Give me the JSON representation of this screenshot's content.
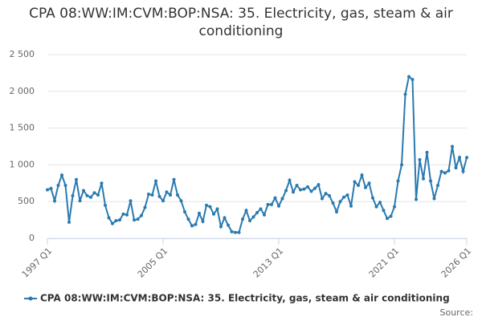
{
  "chart_data": {
    "type": "line",
    "title": "CPA 08:WW:IM:CVM:BOP:NSA: 35. Electricity, gas, steam & air conditioning",
    "categories": [
      "1997 Q1",
      null,
      null,
      null,
      null,
      null,
      null,
      null,
      null,
      null,
      null,
      null,
      null,
      null,
      null,
      null,
      null,
      null,
      null,
      null,
      null,
      null,
      null,
      null,
      null,
      null,
      null,
      null,
      null,
      null,
      null,
      null,
      "2005 Q1",
      null,
      null,
      null,
      null,
      null,
      null,
      null,
      null,
      null,
      null,
      null,
      null,
      null,
      null,
      null,
      null,
      null,
      null,
      null,
      null,
      null,
      null,
      null,
      null,
      null,
      null,
      null,
      null,
      null,
      null,
      null,
      "2013 Q1",
      null,
      null,
      null,
      null,
      null,
      null,
      null,
      null,
      null,
      null,
      null,
      null,
      null,
      null,
      null,
      null,
      null,
      null,
      null,
      null,
      null,
      null,
      null,
      null,
      null,
      null,
      null,
      null,
      null,
      null,
      null,
      "2021 Q1",
      null,
      null,
      null,
      null,
      null,
      null,
      null,
      null,
      null,
      null,
      null,
      null,
      null,
      null,
      null,
      null,
      null,
      null,
      null,
      "2026 Q1"
    ],
    "series": [
      {
        "name": "CPA 08:WW:IM:CVM:BOP:NSA: 35. Electricity, gas, steam & air conditioning",
        "color": "#2a7ab0",
        "values": [
          660,
          680,
          510,
          720,
          860,
          720,
          220,
          580,
          800,
          510,
          650,
          580,
          560,
          620,
          590,
          750,
          450,
          280,
          200,
          240,
          250,
          330,
          320,
          510,
          250,
          260,
          310,
          420,
          600,
          590,
          780,
          570,
          510,
          630,
          590,
          800,
          590,
          510,
          360,
          260,
          170,
          190,
          340,
          230,
          450,
          430,
          330,
          400,
          160,
          280,
          180,
          90,
          80,
          80,
          260,
          380,
          240,
          290,
          350,
          400,
          320,
          460,
          460,
          550,
          440,
          540,
          650,
          790,
          630,
          720,
          660,
          670,
          700,
          640,
          680,
          730,
          540,
          610,
          580,
          480,
          360,
          500,
          560,
          590,
          440,
          770,
          720,
          860,
          690,
          750,
          550,
          430,
          490,
          380,
          270,
          300,
          430,
          780,
          1000,
          1960,
          2200,
          2160,
          530,
          1070,
          810,
          1170,
          780,
          540,
          720,
          910,
          890,
          920,
          1250,
          960,
          1100,
          910,
          1100
        ]
      }
    ],
    "ylim": [
      0,
      2500
    ],
    "yticks": [
      0,
      500,
      {
        "value": 1000,
        "label": "1 000"
      },
      {
        "value": 1500,
        "label": "1 500"
      },
      {
        "value": 2000,
        "label": "2 000"
      },
      {
        "value": 2500,
        "label": "2 500"
      }
    ],
    "grid": true,
    "legend": "bottom",
    "source": "Source:"
  }
}
